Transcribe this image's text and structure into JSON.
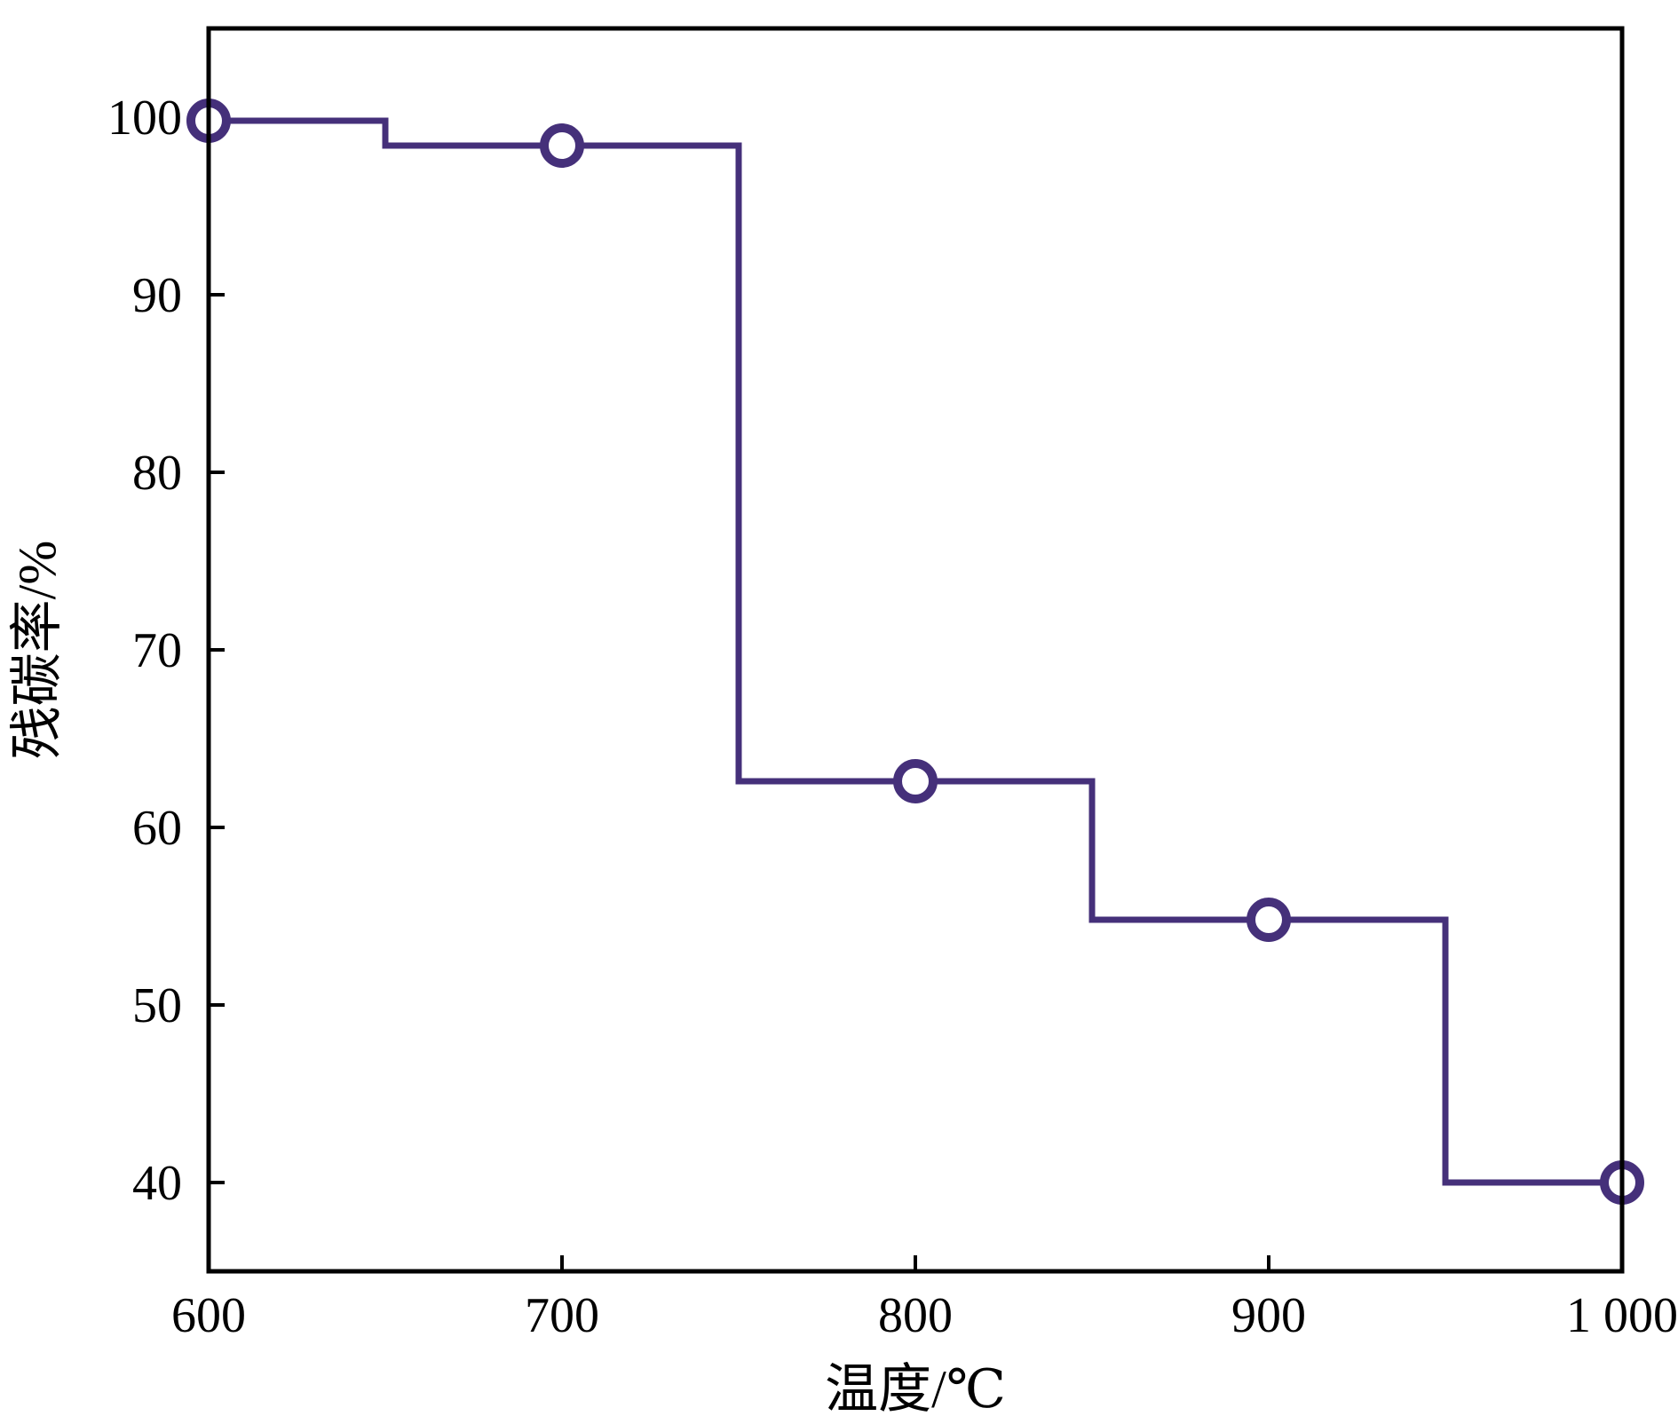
{
  "chart_data": {
    "type": "line",
    "step": true,
    "title": "",
    "xlabel": "温度/℃",
    "ylabel": "残碳率/%",
    "xlim": [
      600,
      1000
    ],
    "ylim": [
      35,
      105
    ],
    "xticks": [
      600,
      700,
      800,
      900,
      1000
    ],
    "xtick_labels": [
      "600",
      "700",
      "800",
      "900",
      "1 000"
    ],
    "yticks": [
      40,
      50,
      60,
      70,
      80,
      90,
      100
    ],
    "ytick_labels": [
      "40",
      "50",
      "60",
      "70",
      "80",
      "90",
      "100"
    ],
    "grid": false,
    "legend": "none",
    "series": [
      {
        "color": "#45307a",
        "marker": "open-circle",
        "x": [
          600,
          700,
          800,
          900,
          1000
        ],
        "y": [
          99.8,
          98.4,
          62.6,
          54.8,
          40.0
        ]
      }
    ]
  }
}
